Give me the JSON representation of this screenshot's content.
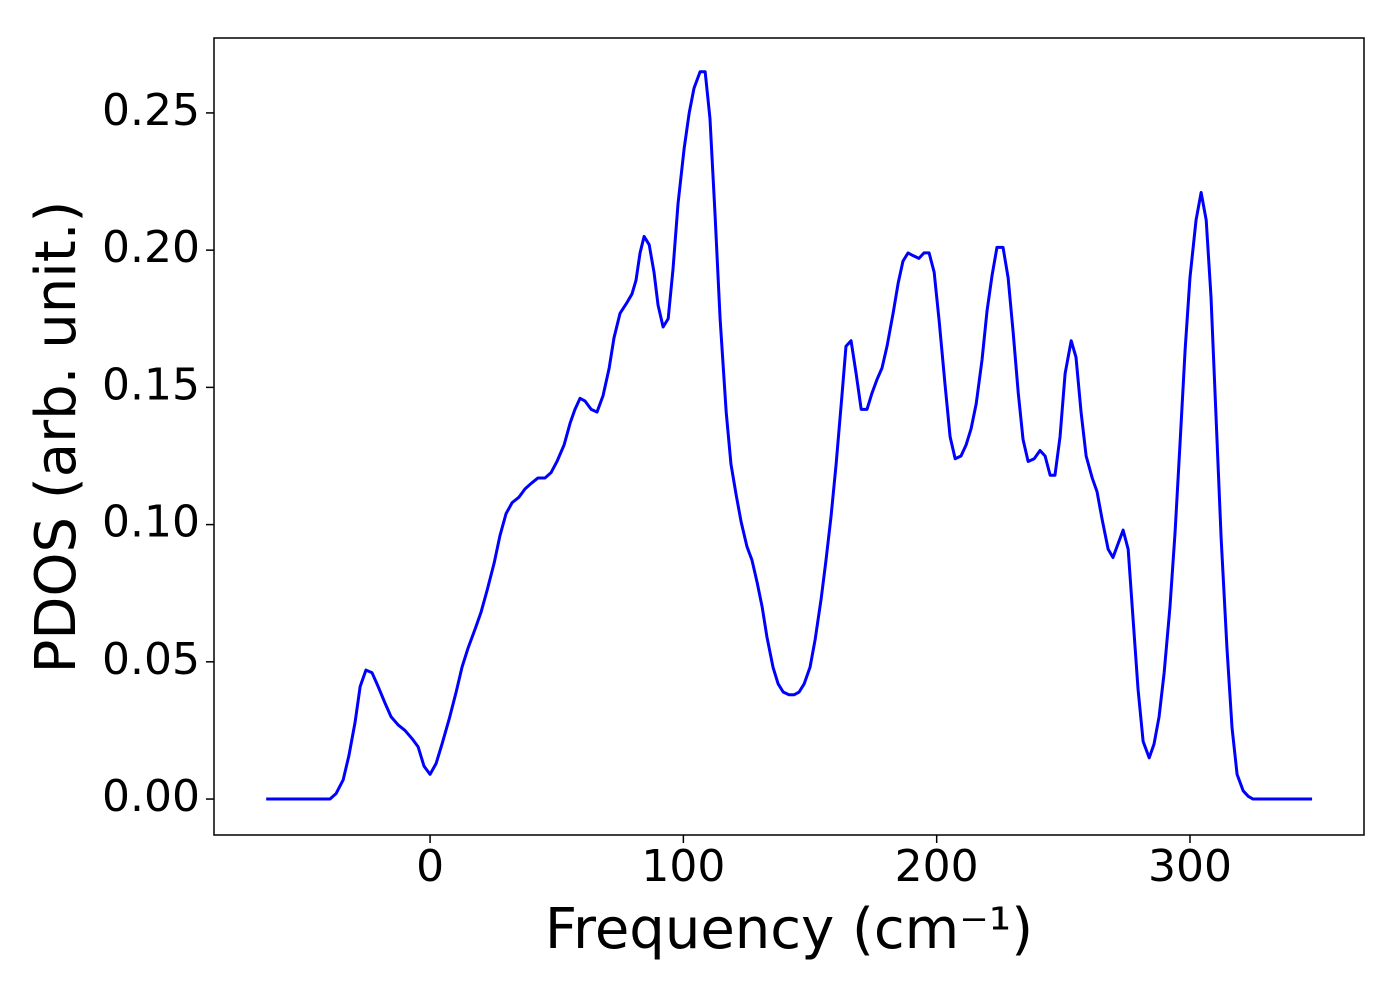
{
  "chart_data": {
    "type": "line",
    "xlabel": "Frequency (cm⁻¹)",
    "ylabel": "PDOS (arb. unit.)",
    "xlim": [
      -85.3,
      368.7
    ],
    "ylim": [
      -0.0131,
      0.2773
    ],
    "xticks": [
      0,
      100,
      200,
      300
    ],
    "yticks": [
      {
        "value": 0,
        "label": "0.00"
      },
      0.05,
      {
        "value": 0.1,
        "label": "0.10"
      },
      0.15,
      {
        "value": 0.2,
        "label": "0.20"
      },
      0.25
    ],
    "series": [
      {
        "color": "#0000ff",
        "x": [
          -64.7,
          -39.5,
          -37.1,
          -34.3,
          -32,
          -29.6,
          -27.6,
          -25.3,
          -22.9,
          -20.5,
          -17.8,
          -15.4,
          -12.6,
          -9.9,
          -7.1,
          -4.7,
          -2.4,
          0,
          2.4,
          4.7,
          7.5,
          10.3,
          12.6,
          15,
          17.8,
          20.1,
          22.5,
          25.3,
          27.6,
          30,
          32.4,
          35.1,
          37.5,
          39.9,
          42.6,
          45.4,
          47.8,
          50.1,
          52.9,
          55.3,
          57.2,
          59.2,
          61.2,
          63.6,
          65.9,
          68.3,
          70.7,
          72.6,
          75,
          77.8,
          79.7,
          81.3,
          82.9,
          84.5,
          86.5,
          88.4,
          90,
          92,
          94,
          95.9,
          97.9,
          100.3,
          102.3,
          104.2,
          106.6,
          108.6,
          110.5,
          112.5,
          114.5,
          116.9,
          118.8,
          120.8,
          122.8,
          125.1,
          127.1,
          129.1,
          131.1,
          133,
          135.4,
          137.4,
          139.4,
          141.7,
          143.7,
          145.7,
          147.7,
          150,
          152,
          154.4,
          156.3,
          158.3,
          160.3,
          162.6,
          164.2,
          166.2,
          168.2,
          170.2,
          172.5,
          174.5,
          176.5,
          178.4,
          180.4,
          182.8,
          184.8,
          186.7,
          188.7,
          190.7,
          193,
          195,
          197,
          199,
          201,
          203.3,
          205.3,
          207.3,
          209.6,
          211.6,
          213.6,
          215.6,
          217.9,
          219.9,
          221.9,
          223.8,
          226.2,
          228.2,
          230.2,
          232.2,
          234.1,
          236.1,
          238.5,
          240.8,
          242.8,
          244.8,
          246.7,
          248.7,
          250.7,
          253.1,
          255,
          257,
          259,
          261.4,
          263.3,
          265.3,
          267.7,
          269.6,
          271.6,
          273.6,
          275.6,
          277.5,
          279.5,
          281.5,
          283.9,
          285.8,
          287.8,
          289.8,
          292.1,
          294.1,
          296.1,
          298.1,
          300,
          302.4,
          304.4,
          306.4,
          308.3,
          310.3,
          312.3,
          314.6,
          316.6,
          318.6,
          321,
          323,
          324.9,
          348.2
        ],
        "values": [
          0,
          0,
          0.002,
          0.007,
          0.016,
          0.028,
          0.041,
          0.047,
          0.046,
          0.041,
          0.035,
          0.03,
          0.027,
          0.025,
          0.022,
          0.019,
          0.012,
          0.009,
          0.013,
          0.02,
          0.029,
          0.039,
          0.048,
          0.055,
          0.062,
          0.068,
          0.076,
          0.086,
          0.096,
          0.104,
          0.108,
          0.11,
          0.113,
          0.115,
          0.117,
          0.117,
          0.119,
          0.123,
          0.129,
          0.137,
          0.142,
          0.146,
          0.145,
          0.142,
          0.141,
          0.147,
          0.157,
          0.168,
          0.177,
          0.181,
          0.184,
          0.189,
          0.199,
          0.205,
          0.202,
          0.192,
          0.18,
          0.172,
          0.175,
          0.193,
          0.217,
          0.237,
          0.25,
          0.259,
          0.265,
          0.265,
          0.248,
          0.213,
          0.175,
          0.141,
          0.122,
          0.111,
          0.101,
          0.092,
          0.087,
          0.079,
          0.07,
          0.059,
          0.048,
          0.042,
          0.039,
          0.038,
          0.038,
          0.039,
          0.042,
          0.048,
          0.058,
          0.073,
          0.087,
          0.103,
          0.122,
          0.147,
          0.165,
          0.167,
          0.155,
          0.142,
          0.142,
          0.148,
          0.153,
          0.157,
          0.165,
          0.177,
          0.188,
          0.196,
          0.199,
          0.198,
          0.197,
          0.199,
          0.199,
          0.192,
          0.174,
          0.151,
          0.132,
          0.124,
          0.125,
          0.129,
          0.135,
          0.144,
          0.16,
          0.178,
          0.191,
          0.201,
          0.201,
          0.19,
          0.17,
          0.148,
          0.131,
          0.123,
          0.124,
          0.127,
          0.125,
          0.118,
          0.118,
          0.132,
          0.155,
          0.167,
          0.161,
          0.141,
          0.125,
          0.117,
          0.112,
          0.102,
          0.091,
          0.088,
          0.093,
          0.098,
          0.091,
          0.066,
          0.04,
          0.021,
          0.015,
          0.02,
          0.03,
          0.046,
          0.07,
          0.097,
          0.13,
          0.164,
          0.19,
          0.211,
          0.221,
          0.211,
          0.183,
          0.139,
          0.095,
          0.055,
          0.026,
          0.009,
          0.003,
          0.001,
          0,
          0
        ]
      }
    ]
  }
}
